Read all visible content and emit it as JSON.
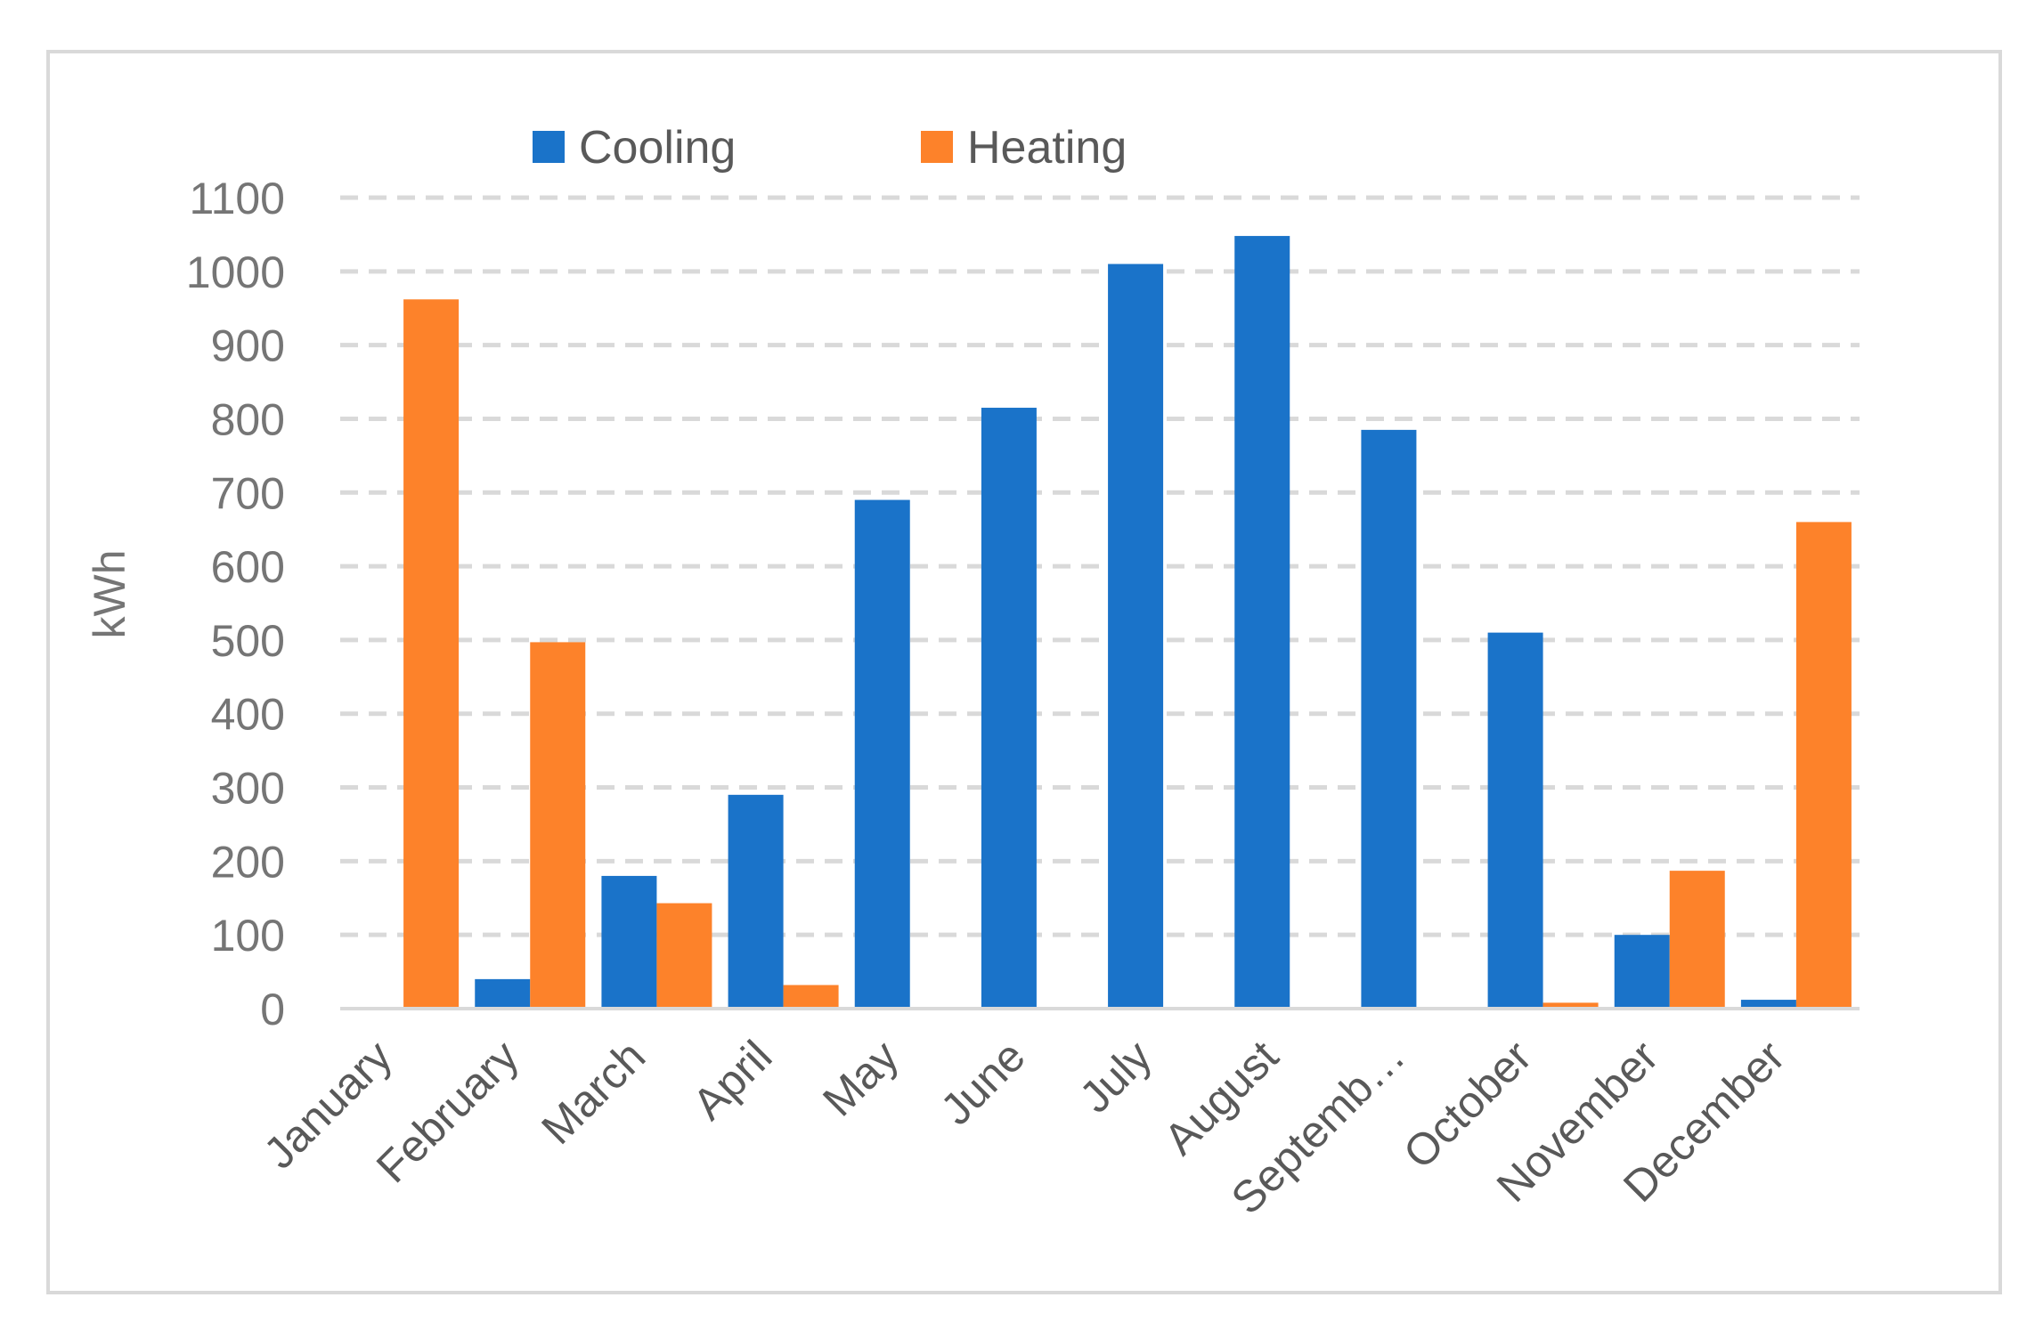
{
  "chart_data": {
    "type": "bar",
    "title": "",
    "xlabel": "",
    "ylabel": "kWh",
    "ylim": [
      0,
      1100
    ],
    "yticks": [
      0,
      100,
      200,
      300,
      400,
      500,
      600,
      700,
      800,
      900,
      1000,
      1100
    ],
    "grid": true,
    "legend_position": "top",
    "categories": [
      "January",
      "February",
      "March",
      "April",
      "May",
      "June",
      "July",
      "August",
      "Septemb…",
      "October",
      "November",
      "December"
    ],
    "series": [
      {
        "name": "Cooling",
        "color": "#1a73c9",
        "values": [
          0,
          40,
          180,
          290,
          690,
          815,
          1010,
          1048,
          785,
          510,
          100,
          12
        ]
      },
      {
        "name": "Heating",
        "color": "#fd822a",
        "values": [
          962,
          497,
          143,
          32,
          0,
          0,
          0,
          0,
          0,
          8,
          187,
          660
        ]
      }
    ]
  }
}
